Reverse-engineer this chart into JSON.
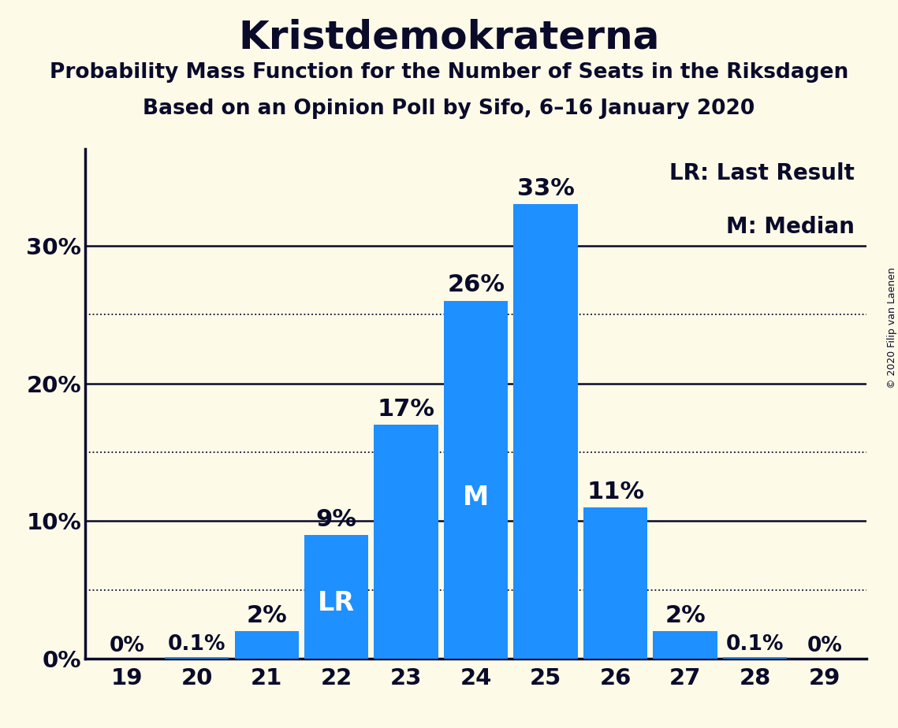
{
  "title": "Kristdemokraterna",
  "subtitle1": "Probability Mass Function for the Number of Seats in the Riksdagen",
  "subtitle2": "Based on an Opinion Poll by Sifo, 6–16 January 2020",
  "copyright": "© 2020 Filip van Laenen",
  "seats": [
    19,
    20,
    21,
    22,
    23,
    24,
    25,
    26,
    27,
    28,
    29
  ],
  "probabilities": [
    0.0,
    0.001,
    0.02,
    0.09,
    0.17,
    0.26,
    0.33,
    0.11,
    0.02,
    0.001,
    0.0
  ],
  "bar_labels": [
    "0%",
    "0.1%",
    "2%",
    "9%",
    "17%",
    "26%",
    "33%",
    "11%",
    "2%",
    "0.1%",
    "0%"
  ],
  "bar_color": "#1E90FF",
  "background_color": "#FDFAE8",
  "text_color": "#0a0a2a",
  "lr_seat": 22,
  "median_seat": 24,
  "legend_lr": "LR: Last Result",
  "legend_m": "M: Median",
  "yticks_solid": [
    0.0,
    0.1,
    0.2,
    0.3
  ],
  "yticks_dotted": [
    0.05,
    0.15,
    0.25
  ],
  "ymax": 0.37,
  "title_fontsize": 36,
  "subtitle_fontsize": 19,
  "tick_fontsize": 21,
  "label_fontsize_large": 22,
  "label_fontsize_small": 19,
  "label_fontsize_lr_m": 24,
  "legend_fontsize": 20,
  "copyright_fontsize": 9
}
